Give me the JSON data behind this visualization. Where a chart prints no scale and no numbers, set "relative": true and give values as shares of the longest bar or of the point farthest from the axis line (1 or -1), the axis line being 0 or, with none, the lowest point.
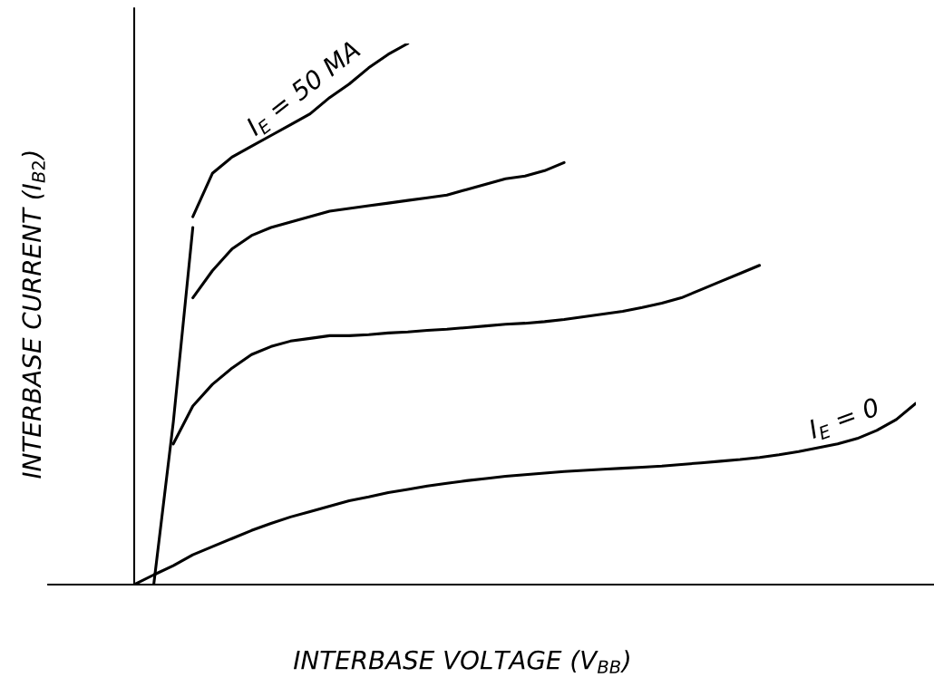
{
  "chart_data": {
    "type": "line",
    "relative": true,
    "xlabel": "INTERBASE VOLTAGE (V$_{BB}$)",
    "ylabel": "INTERBASE CURRENT (I$_{B2}$)",
    "color": "#000000",
    "grid": false,
    "marker": "none",
    "line_style": "solid",
    "categories": [
      null,
      null,
      null,
      null,
      null,
      null,
      null,
      null,
      null,
      null,
      null,
      null,
      null,
      null,
      null,
      null,
      null,
      null,
      null,
      null,
      null,
      null,
      null,
      null,
      null,
      null,
      null,
      null,
      null,
      null,
      null,
      null,
      null,
      null,
      null,
      null,
      null,
      null,
      null,
      null,
      null
    ],
    "series": [
      {
        "values": [
          null,
          null,
          null,
          0.68,
          0.76,
          0.79,
          0.81,
          0.83,
          0.85,
          0.87,
          0.9,
          0.925,
          0.955,
          0.98,
          1.0,
          null,
          null,
          null,
          null,
          null,
          null,
          null,
          null,
          null,
          null,
          null,
          null,
          null,
          null,
          null,
          null,
          null,
          null,
          null,
          null,
          null,
          null,
          null,
          null,
          null,
          null
        ]
      },
      {
        "values": [
          null,
          null,
          null,
          0.53,
          0.58,
          0.62,
          0.645,
          0.66,
          0.67,
          0.68,
          0.69,
          0.695,
          0.7,
          0.705,
          0.71,
          0.715,
          0.72,
          0.73,
          0.74,
          0.75,
          0.755,
          0.765,
          0.78,
          null,
          null,
          null,
          null,
          null,
          null,
          null,
          null,
          null,
          null,
          null,
          null,
          null,
          null,
          null,
          null,
          null,
          null
        ]
      },
      {
        "values": [
          null,
          null,
          0.26,
          0.33,
          0.37,
          0.4,
          0.425,
          0.44,
          0.45,
          0.455,
          0.46,
          0.46,
          0.462,
          0.465,
          0.467,
          0.47,
          0.472,
          0.475,
          0.478,
          0.481,
          0.483,
          0.486,
          0.49,
          0.495,
          0.5,
          0.505,
          0.512,
          0.52,
          0.53,
          0.545,
          0.56,
          0.575,
          0.59,
          null,
          null,
          null,
          null,
          null,
          null,
          null,
          null
        ]
      },
      {
        "values": [
          0.0,
          0.018,
          0.035,
          0.055,
          0.07,
          0.085,
          0.1,
          0.113,
          0.125,
          0.135,
          0.145,
          0.155,
          0.162,
          0.17,
          0.176,
          0.182,
          0.187,
          0.192,
          0.196,
          0.2,
          0.203,
          0.206,
          0.209,
          0.211,
          0.213,
          0.215,
          0.217,
          0.219,
          0.222,
          0.225,
          0.228,
          0.231,
          0.235,
          0.24,
          0.246,
          0.253,
          0.26,
          0.27,
          0.285,
          0.305,
          0.335
        ]
      },
      {
        "values": [
          null,
          0.0,
          0.3,
          0.66,
          null,
          null,
          null,
          null,
          null,
          null,
          null,
          null,
          null,
          null,
          null,
          null,
          null,
          null,
          null,
          null,
          null,
          null,
          null,
          null,
          null,
          null,
          null,
          null,
          null,
          null,
          null,
          null,
          null,
          null,
          null,
          null,
          null,
          null,
          null,
          null,
          null
        ]
      }
    ],
    "annotations": [
      "I$_{E}$ = 50 MA",
      "I$_{E}$ = 0"
    ]
  }
}
